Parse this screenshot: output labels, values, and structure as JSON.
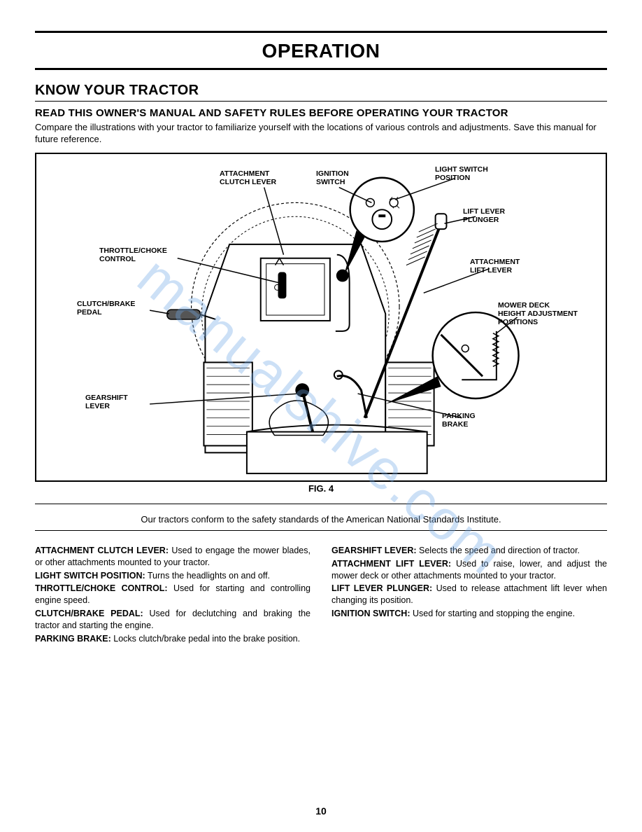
{
  "page": {
    "title": "OPERATION",
    "section_h1": "KNOW YOUR TRACTOR",
    "section_h2": "READ THIS OWNER'S MANUAL AND SAFETY RULES BEFORE OPERATING YOUR TRACTOR",
    "intro": "Compare the illustrations with your tractor to familiarize yourself with the locations of various controls and adjustments. Save this manual for future reference.",
    "fig_caption": "FIG. 4",
    "safety_line": "Our tractors conform to the safety standards of the American National Standards Institute.",
    "page_number": "10",
    "watermark": "manualshive.com"
  },
  "figure": {
    "labels": {
      "attachment_clutch": "ATTACHMENT\nCLUTCH LEVER",
      "ignition_switch": "IGNITION\nSWITCH",
      "light_switch": "LIGHT SWITCH\nPOSITION",
      "lift_plunger": "LIFT LEVER\nPLUNGER",
      "throttle_choke": "THROTTLE/CHOKE\nCONTROL",
      "attachment_lift": "ATTACHMENT\nLIFT LEVER",
      "clutch_brake": "CLUTCH/BRAKE\nPEDAL",
      "mower_deck": "MOWER DECK\nHEIGHT ADJUSTMENT\nPOSITIONS",
      "gearshift": "GEARSHIFT\nLEVER",
      "parking_brake": "PARKING\nBRAKE"
    },
    "style": {
      "stroke": "#000000",
      "stroke_width": 2,
      "dash": "4,3",
      "label_fontsize": 10.5,
      "label_weight": 900
    }
  },
  "definitions": {
    "left": [
      {
        "term": "ATTACHMENT CLUTCH LEVER:",
        "body": " Used to engage the mower blades, or other attachments mounted to your tractor."
      },
      {
        "term": "LIGHT SWITCH POSITION:",
        "body": " Turns the headlights on and off."
      },
      {
        "term": "THROTTLE/CHOKE CONTROL:",
        "body": " Used for starting and controlling engine speed."
      },
      {
        "term": "CLUTCH/BRAKE PEDAL:",
        "body": " Used for declutching and braking the tractor and starting the engine."
      },
      {
        "term": "PARKING BRAKE:",
        "body": " Locks clutch/brake pedal into the brake position."
      }
    ],
    "right": [
      {
        "term": "GEARSHIFT LEVER:",
        "body": " Selects the speed and direction of tractor."
      },
      {
        "term": "ATTACHMENT LIFT LEVER:",
        "body": " Used to raise, lower, and adjust the mower deck or other attachments mounted to your tractor."
      },
      {
        "term": "LIFT LEVER PLUNGER:",
        "body": " Used to release attachment lift lever when changing its position."
      },
      {
        "term": "IGNITION SWITCH:",
        "body": " Used for starting and stopping the engine."
      }
    ]
  }
}
